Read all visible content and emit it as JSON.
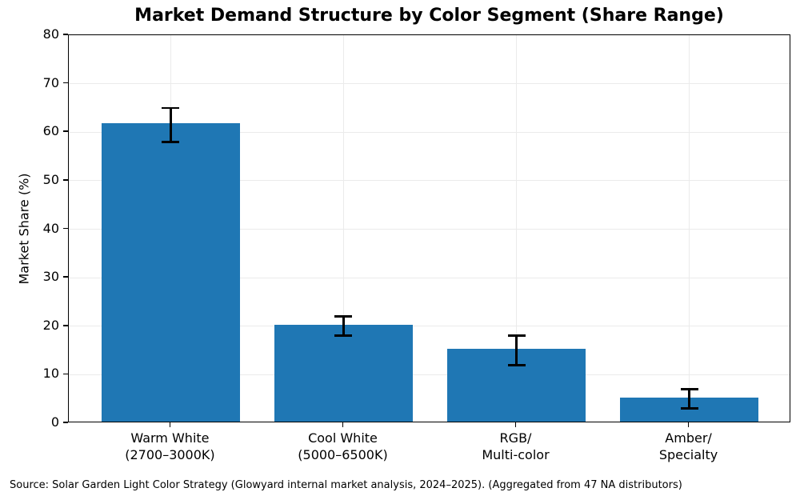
{
  "chart_data": {
    "type": "bar",
    "title": "Market Demand Structure by Color Segment (Share Range)",
    "ylabel": "Market Share (%)",
    "xlabel": "",
    "categories": [
      "Warm White\n(2700–3000K)",
      "Cool White\n(5000–6500K)",
      "RGB/\nMulti-color",
      "Amber/\nSpecialty"
    ],
    "values": [
      61.5,
      20,
      15,
      5
    ],
    "error_low": [
      58,
      18,
      12,
      3
    ],
    "error_high": [
      65,
      22,
      18,
      7
    ],
    "ylim": [
      0,
      80
    ],
    "yticks": [
      0,
      10,
      20,
      30,
      40,
      50,
      60,
      70,
      80
    ],
    "grid": "both",
    "legend": "none",
    "bar_color": "#1f77b4",
    "error_color": "#000000",
    "grid_color": "#ebebeb"
  },
  "footer": {
    "source_note": "Source: Solar Garden Light Color Strategy (Glowyard internal market analysis, 2024–2025). (Aggregated from 47 NA distributors)"
  }
}
